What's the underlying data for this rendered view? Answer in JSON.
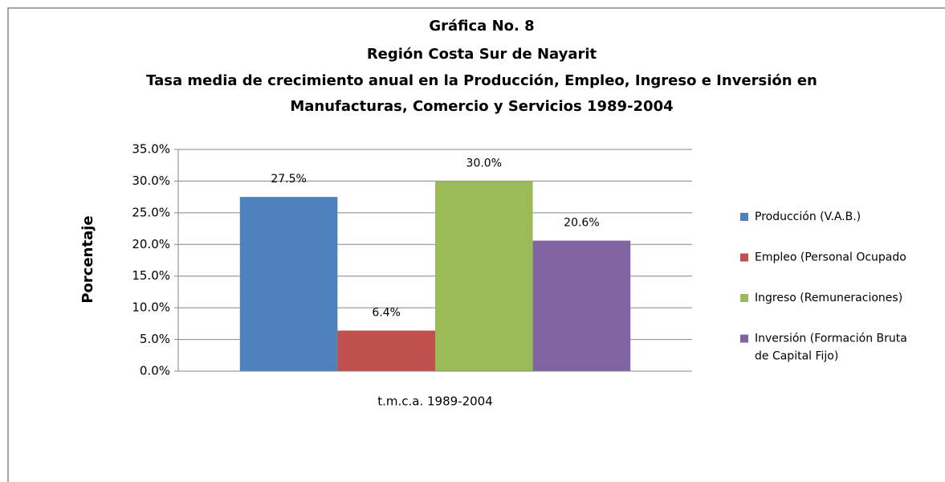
{
  "chart_data": {
    "type": "bar",
    "title": [
      "Gráfica No. 8",
      "Región Costa Sur de Nayarit",
      "Tasa media de crecimiento anual  en la Producción, Empleo, Ingreso e Inversión  en",
      "Manufacturas, Comercio y Servicios  1989-2004"
    ],
    "y_label": "Porcentaje",
    "categories": [
      "t.m.c.a. 1989-2004"
    ],
    "series": [
      {
        "name": "Producción (V.A.B.)",
        "color": "#4f81bd",
        "values": [
          27.5
        ],
        "value_labels": [
          "27.5%"
        ]
      },
      {
        "name": "Empleo (Personal Ocupado",
        "color": "#c0504d",
        "values": [
          6.4
        ],
        "value_labels": [
          "6.4%"
        ]
      },
      {
        "name": "Ingreso (Remuneraciones)",
        "color": "#9bbb59",
        "values": [
          30.0
        ],
        "value_labels": [
          "30.0%"
        ]
      },
      {
        "name": "Inversión (Formación Bruta de Capital Fijo)",
        "color": "#8064a2",
        "values": [
          20.6
        ],
        "value_labels": [
          "20.6%"
        ]
      }
    ],
    "ylim": [
      0,
      35
    ],
    "yticks": [
      {
        "value": 0,
        "label": "0.0%"
      },
      {
        "value": 5,
        "label": "5.0%"
      },
      {
        "value": 10,
        "label": "10.0%"
      },
      {
        "value": 15,
        "label": "15.0%"
      },
      {
        "value": 20,
        "label": "20.0%"
      },
      {
        "value": 25,
        "label": "25.0%"
      },
      {
        "value": 30,
        "label": "30.0%"
      },
      {
        "value": 35,
        "label": "35.0%"
      }
    ],
    "grid": true,
    "legend": "right"
  }
}
